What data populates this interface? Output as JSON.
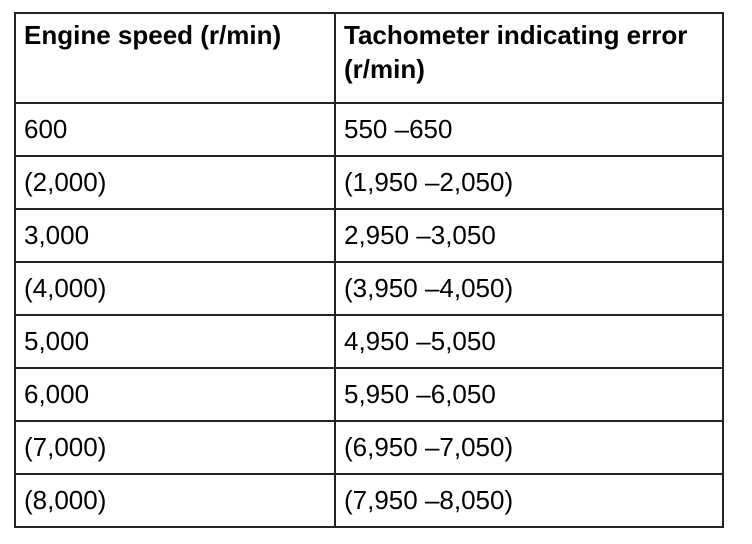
{
  "table": {
    "header": [
      "Engine speed (r/min)",
      "Tachometer indicating error (r/min)"
    ],
    "rows": [
      [
        "600",
        "550 –650"
      ],
      [
        "(2,000)",
        "(1,950 –2,050)"
      ],
      [
        "3,000",
        "2,950 –3,050"
      ],
      [
        "(4,000)",
        "(3,950 –4,050)"
      ],
      [
        "5,000",
        "4,950 –5,050"
      ],
      [
        "6,000",
        "5,950 –6,050"
      ],
      [
        "(7,000)",
        "(6,950 –7,050)"
      ],
      [
        "(8,000)",
        "(7,950 –8,050)"
      ]
    ]
  }
}
